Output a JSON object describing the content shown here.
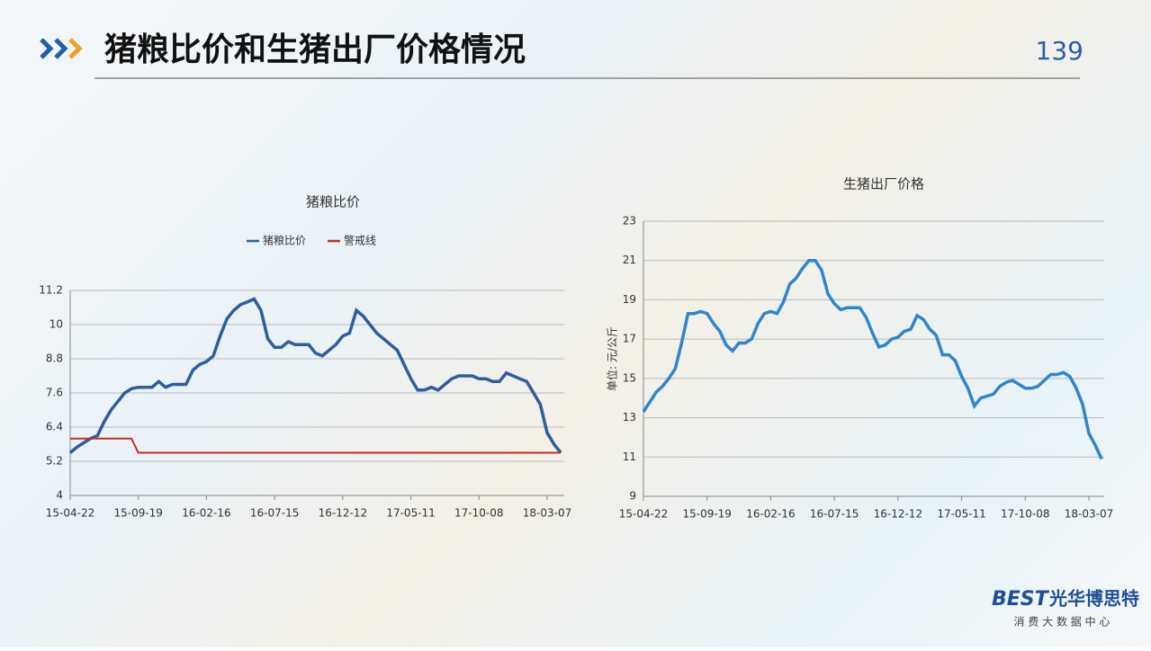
{
  "header": {
    "title": "猪粮比价和生猪出厂价格情况",
    "page": "139"
  },
  "footer": {
    "brand": "BEST",
    "name": "光华博思特",
    "tagline": "消 费 大 数 据 中 心"
  },
  "chart_data": [
    {
      "type": "line",
      "title": "猪粮比价",
      "legend": "top",
      "categories": [
        "15-04-22",
        null,
        null,
        null,
        null,
        null,
        null,
        null,
        null,
        null,
        "15-09-19",
        null,
        null,
        null,
        null,
        null,
        null,
        null,
        null,
        null,
        "16-02-16",
        null,
        null,
        null,
        null,
        null,
        null,
        null,
        null,
        null,
        "16-07-15",
        null,
        null,
        null,
        null,
        null,
        null,
        null,
        null,
        null,
        "16-12-12",
        null,
        null,
        null,
        null,
        null,
        null,
        null,
        null,
        null,
        "17-05-11",
        null,
        null,
        null,
        null,
        null,
        null,
        null,
        null,
        null,
        "17-10-08",
        null,
        null,
        null,
        null,
        null,
        null,
        null,
        null,
        null,
        "18-03-07",
        null,
        null
      ],
      "series": [
        {
          "name": "猪粮比价",
          "color": "#2e5e9e",
          "values": [
            5.5,
            5.7,
            5.85,
            6.0,
            6.1,
            6.6,
            7.0,
            7.3,
            7.6,
            7.75,
            7.8,
            7.8,
            7.8,
            8.0,
            7.8,
            7.9,
            7.9,
            7.9,
            8.4,
            8.6,
            8.7,
            8.9,
            9.6,
            10.2,
            10.5,
            10.7,
            10.8,
            10.9,
            10.5,
            9.5,
            9.2,
            9.2,
            9.4,
            9.3,
            9.3,
            9.3,
            9.0,
            8.9,
            9.1,
            9.3,
            9.6,
            9.7,
            10.5,
            10.3,
            10.0,
            9.7,
            9.5,
            9.3,
            9.1,
            8.6,
            8.1,
            7.7,
            7.7,
            7.8,
            7.7,
            7.9,
            8.1,
            8.2,
            8.2,
            8.2,
            8.1,
            8.1,
            8.0,
            8.0,
            8.3,
            8.2,
            8.1,
            8.0,
            7.6,
            7.2,
            6.2,
            5.8,
            5.5
          ]
        },
        {
          "name": "警戒线",
          "color": "#c0302a",
          "values": [
            6.0,
            6.0,
            6.0,
            6.0,
            6.0,
            6.0,
            6.0,
            6.0,
            6.0,
            6.0,
            5.5,
            5.5,
            5.5,
            5.5,
            5.5,
            5.5,
            5.5,
            5.5,
            5.5,
            5.5,
            5.5,
            5.5,
            5.5,
            5.5,
            5.5,
            5.5,
            5.5,
            5.5,
            5.5,
            5.5,
            5.5,
            5.5,
            5.5,
            5.5,
            5.5,
            5.5,
            5.5,
            5.5,
            5.5,
            5.5,
            5.5,
            5.5,
            5.5,
            5.5,
            5.5,
            5.5,
            5.5,
            5.5,
            5.5,
            5.5,
            5.5,
            5.5,
            5.5,
            5.5,
            5.5,
            5.5,
            5.5,
            5.5,
            5.5,
            5.5,
            5.5,
            5.5,
            5.5,
            5.5,
            5.5,
            5.5,
            5.5,
            5.5,
            5.5,
            5.5,
            5.5,
            5.5,
            5.5
          ]
        }
      ],
      "ylim": [
        4,
        11.2
      ],
      "yticks": [
        4,
        5.2,
        6.4,
        7.6,
        8.8,
        10,
        11.2
      ],
      "grid": true
    },
    {
      "type": "line",
      "title": "生猪出厂价格",
      "ylabel": "单位: 元/公斤",
      "categories": [
        "15-04-22",
        null,
        null,
        null,
        null,
        null,
        null,
        null,
        null,
        null,
        "15-09-19",
        null,
        null,
        null,
        null,
        null,
        null,
        null,
        null,
        null,
        "16-02-16",
        null,
        null,
        null,
        null,
        null,
        null,
        null,
        null,
        null,
        "16-07-15",
        null,
        null,
        null,
        null,
        null,
        null,
        null,
        null,
        null,
        "16-12-12",
        null,
        null,
        null,
        null,
        null,
        null,
        null,
        null,
        null,
        "17-05-11",
        null,
        null,
        null,
        null,
        null,
        null,
        null,
        null,
        null,
        "17-10-08",
        null,
        null,
        null,
        null,
        null,
        null,
        null,
        null,
        null,
        "18-03-07",
        null,
        null
      ],
      "series": [
        {
          "color": "#2f86cc",
          "values": [
            13.3,
            13.8,
            14.3,
            14.6,
            15.0,
            15.5,
            16.8,
            18.3,
            18.3,
            18.4,
            18.3,
            17.8,
            17.4,
            16.7,
            16.4,
            16.8,
            16.8,
            17.0,
            17.8,
            18.3,
            18.4,
            18.3,
            18.9,
            19.8,
            20.1,
            20.6,
            21.0,
            21.0,
            20.5,
            19.3,
            18.8,
            18.5,
            18.6,
            18.6,
            18.6,
            18.1,
            17.3,
            16.6,
            16.7,
            17.0,
            17.1,
            17.4,
            17.5,
            18.2,
            18.0,
            17.5,
            17.2,
            16.2,
            16.2,
            15.9,
            15.1,
            14.5,
            13.6,
            14.0,
            14.1,
            14.2,
            14.6,
            14.8,
            14.9,
            14.7,
            14.5,
            14.5,
            14.6,
            14.9,
            15.2,
            15.2,
            15.3,
            15.1,
            14.5,
            13.7,
            12.2,
            11.6,
            10.9
          ]
        }
      ],
      "ylim": [
        9,
        23
      ],
      "yticks": [
        9,
        11,
        13,
        15,
        17,
        19,
        21,
        23
      ],
      "grid": true
    }
  ]
}
